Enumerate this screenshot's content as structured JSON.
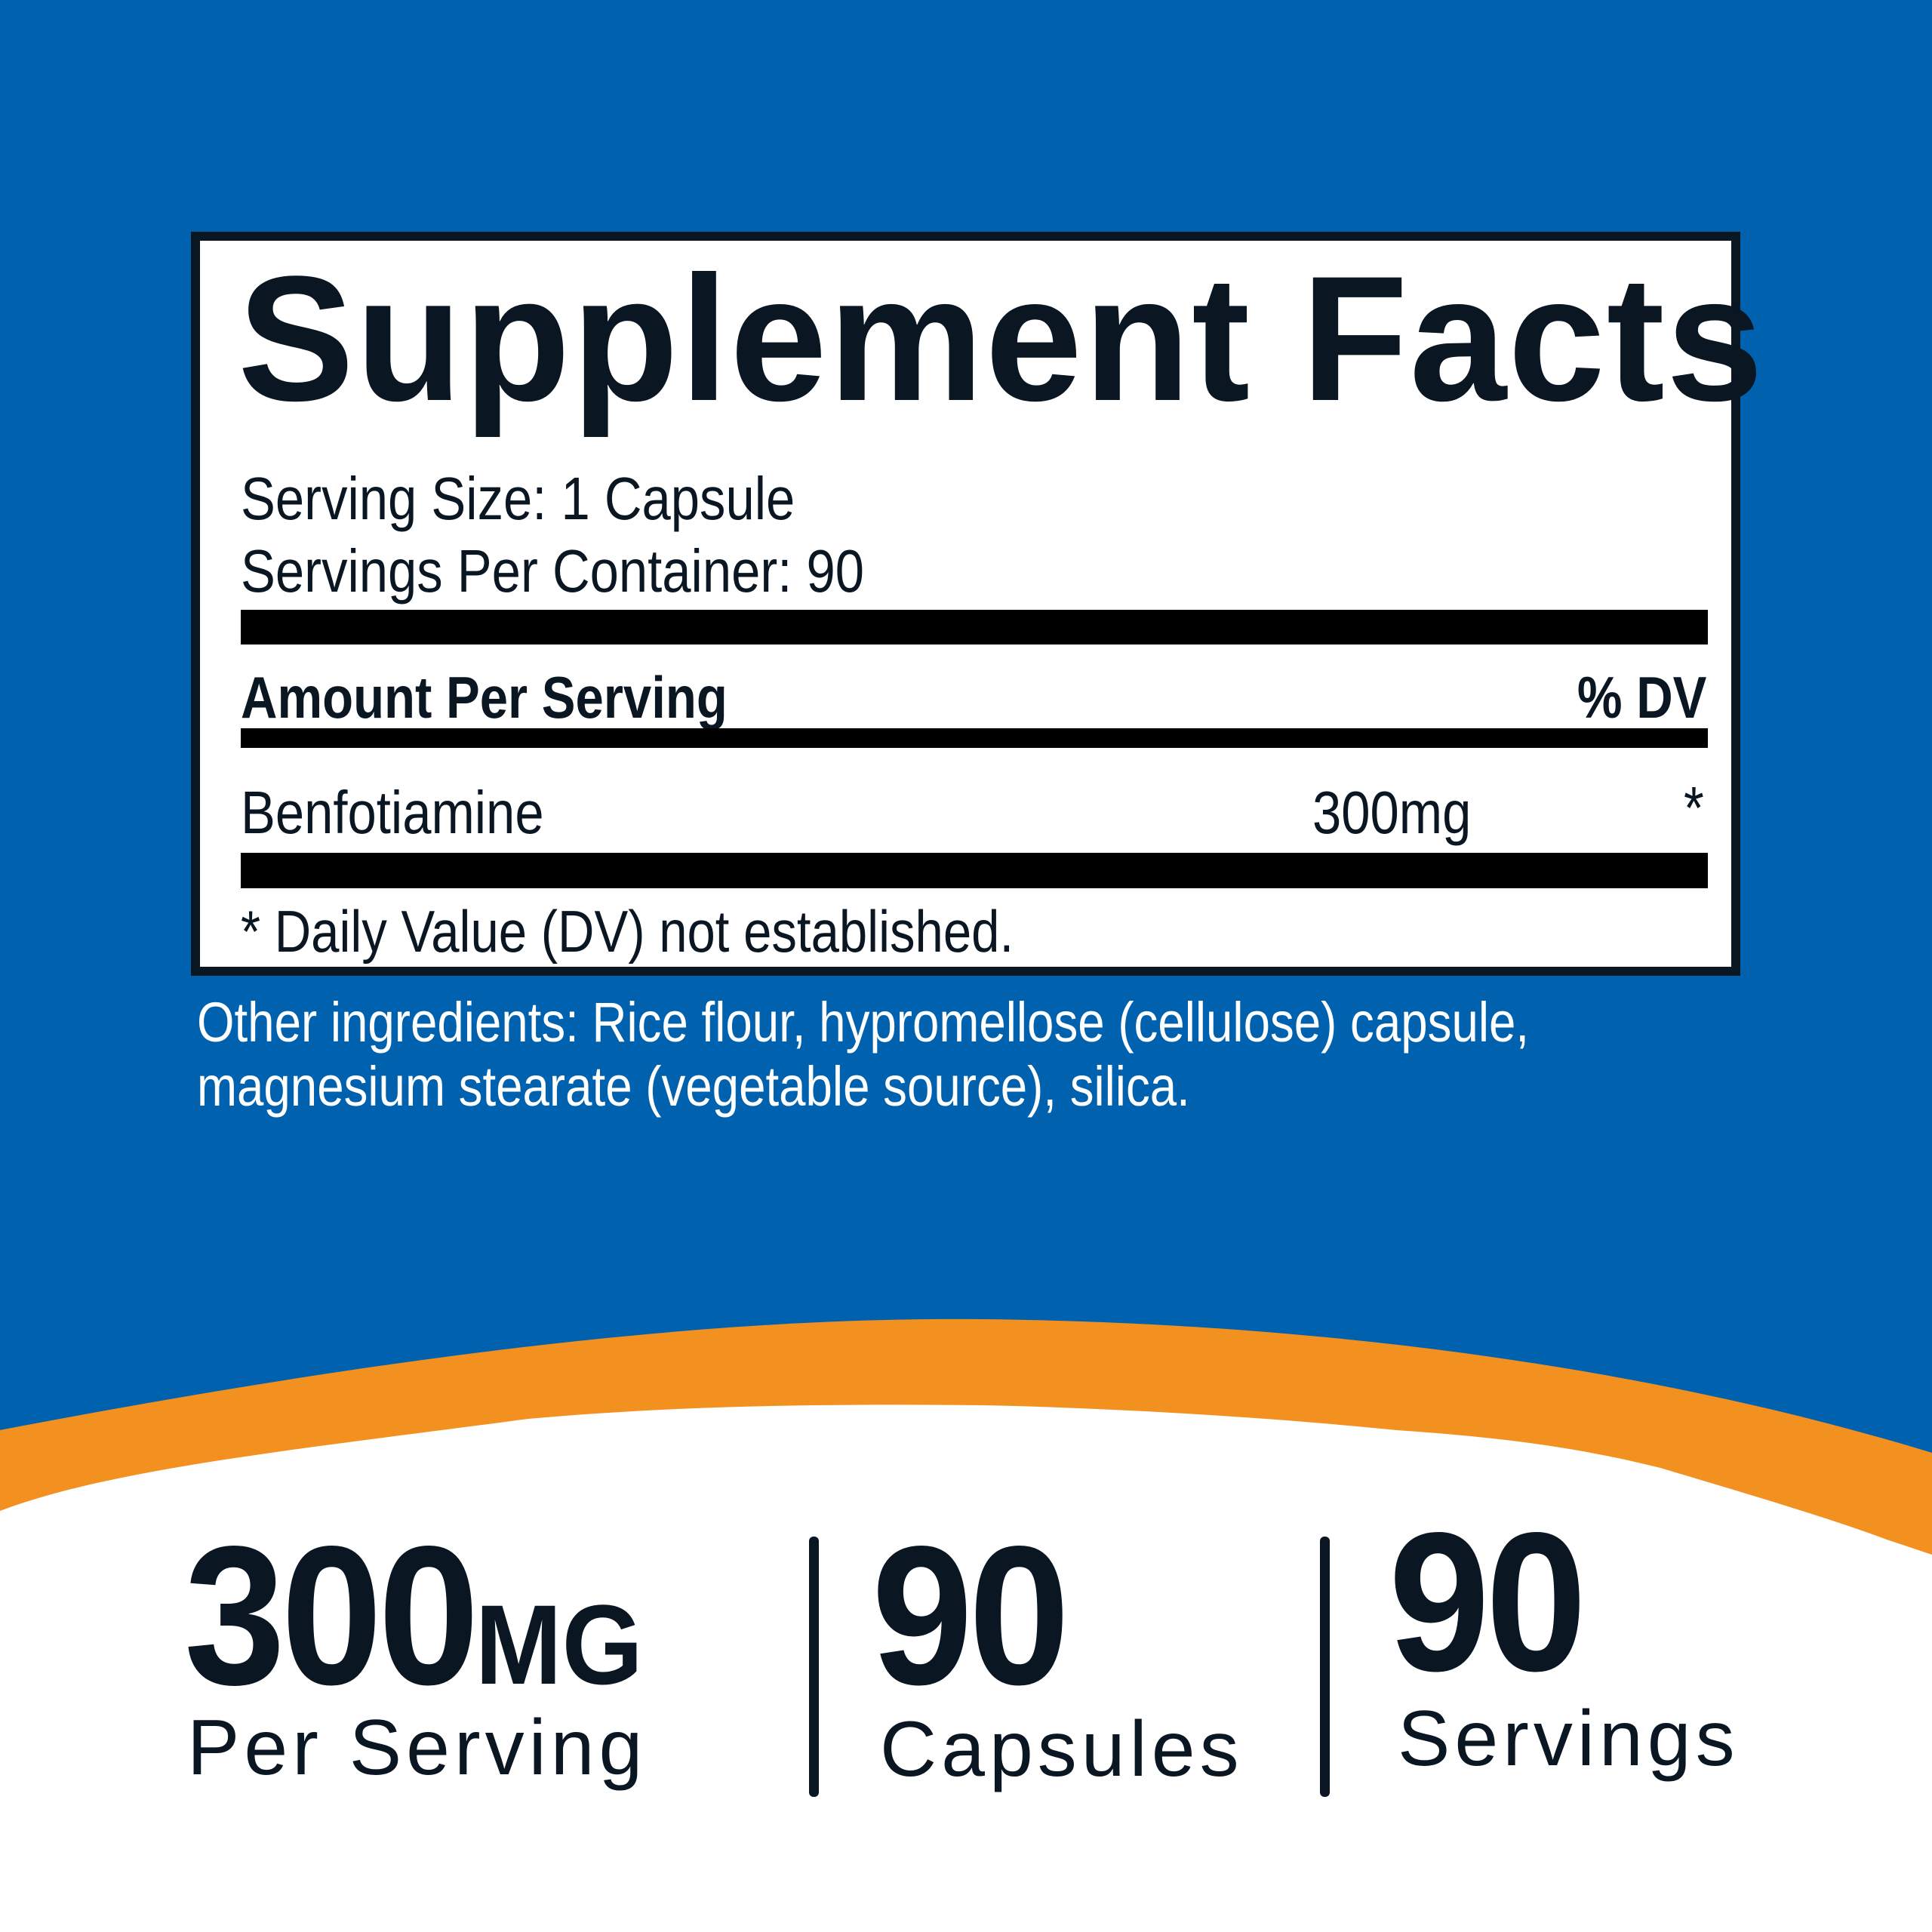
{
  "colors": {
    "background_blue": "#0062AE",
    "accent_orange": "#F39120",
    "text_dark": "#0A1622"
  },
  "facts": {
    "title": "Supplement Facts",
    "serving_size": "Serving Size: 1 Capsule",
    "servings_per_container": "Servings Per Container: 90",
    "header_left": "Amount Per Serving",
    "header_right": "% DV",
    "ingredients": [
      {
        "name": "Benfotiamine",
        "amount": "300mg",
        "dv": "*"
      }
    ],
    "footnote": "* Daily Value (DV) not established."
  },
  "other_ingredients": {
    "line1": "Other ingredients: Rice flour, hypromellose (cellulose) capsule,",
    "line2": "magnesium stearate (vegetable source), silica."
  },
  "highlights": [
    {
      "value": "300",
      "unit": "MG",
      "label": "Per Serving"
    },
    {
      "value": "90",
      "unit": "",
      "label": "Capsules"
    },
    {
      "value": "90",
      "unit": "",
      "label": "Servings"
    }
  ]
}
